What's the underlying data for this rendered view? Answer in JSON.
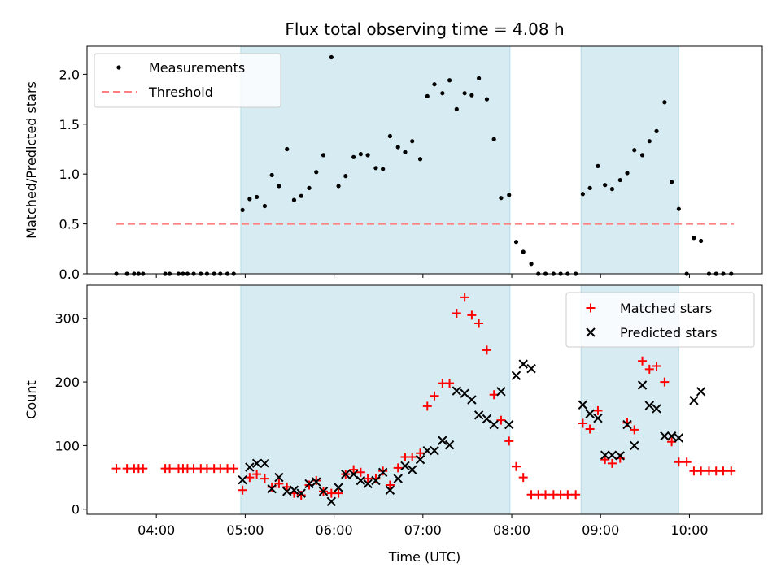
{
  "figure_title": "Flux total observing time = 4.08 h",
  "colors": {
    "band": "#add8e6",
    "band_opacity": 0.5,
    "measurement": "#000000",
    "threshold": "#ff7f7f",
    "matched": "#ff0000",
    "predicted": "#000000"
  },
  "chart_data": [
    {
      "type": "scatter",
      "title": "Flux total observing time = 4.08 h",
      "xlabel": "",
      "ylabel": "Matched/Predicted stars",
      "xlim_hours": [
        3.22,
        10.82
      ],
      "ylim": [
        0,
        2.28
      ],
      "yticks": [
        0.0,
        0.5,
        1.0,
        1.5,
        2.0
      ],
      "ytick_labels": [
        "0.0",
        "0.5",
        "1.0",
        "1.5",
        "2.0"
      ],
      "legend_position": "top-left",
      "legend": [
        "Measurements",
        "Threshold"
      ],
      "threshold": {
        "value": 0.5,
        "x_start_hours": 3.55,
        "x_end_hours": 10.5,
        "label": "Threshold"
      },
      "observing_windows_hours": [
        [
          4.95,
          7.98
        ],
        [
          8.78,
          9.88
        ]
      ],
      "series": [
        {
          "name": "Measurements",
          "marker": "dot",
          "points": [
            [
              3.55,
              0
            ],
            [
              3.67,
              0
            ],
            [
              3.75,
              0
            ],
            [
              3.8,
              0
            ],
            [
              3.85,
              0
            ],
            [
              4.1,
              0
            ],
            [
              4.15,
              0
            ],
            [
              4.25,
              0
            ],
            [
              4.3,
              0
            ],
            [
              4.35,
              0
            ],
            [
              4.42,
              0
            ],
            [
              4.5,
              0
            ],
            [
              4.57,
              0
            ],
            [
              4.65,
              0
            ],
            [
              4.72,
              0
            ],
            [
              4.8,
              0
            ],
            [
              4.87,
              0
            ],
            [
              4.97,
              0.64
            ],
            [
              5.05,
              0.75
            ],
            [
              5.13,
              0.77
            ],
            [
              5.22,
              0.68
            ],
            [
              5.3,
              0.99
            ],
            [
              5.38,
              0.88
            ],
            [
              5.47,
              1.25
            ],
            [
              5.55,
              0.74
            ],
            [
              5.63,
              0.78
            ],
            [
              5.72,
              0.86
            ],
            [
              5.8,
              1.02
            ],
            [
              5.88,
              1.19
            ],
            [
              5.97,
              2.17
            ],
            [
              6.05,
              0.88
            ],
            [
              6.13,
              0.98
            ],
            [
              6.22,
              1.17
            ],
            [
              6.3,
              1.2
            ],
            [
              6.38,
              1.19
            ],
            [
              6.47,
              1.06
            ],
            [
              6.55,
              1.05
            ],
            [
              6.63,
              1.38
            ],
            [
              6.72,
              1.27
            ],
            [
              6.8,
              1.22
            ],
            [
              6.88,
              1.33
            ],
            [
              6.97,
              1.15
            ],
            [
              7.05,
              1.78
            ],
            [
              7.13,
              1.9
            ],
            [
              7.22,
              1.81
            ],
            [
              7.3,
              1.94
            ],
            [
              7.38,
              1.65
            ],
            [
              7.47,
              1.81
            ],
            [
              7.55,
              1.79
            ],
            [
              7.63,
              1.96
            ],
            [
              7.72,
              1.75
            ],
            [
              7.8,
              1.35
            ],
            [
              7.88,
              0.76
            ],
            [
              7.97,
              0.79
            ],
            [
              8.05,
              0.32
            ],
            [
              8.13,
              0.22
            ],
            [
              8.22,
              0.1
            ],
            [
              8.3,
              0
            ],
            [
              8.38,
              0
            ],
            [
              8.47,
              0
            ],
            [
              8.55,
              0
            ],
            [
              8.63,
              0
            ],
            [
              8.72,
              0
            ],
            [
              8.8,
              0.8
            ],
            [
              8.88,
              0.86
            ],
            [
              8.97,
              1.08
            ],
            [
              9.05,
              0.89
            ],
            [
              9.13,
              0.85
            ],
            [
              9.22,
              0.94
            ],
            [
              9.3,
              1.01
            ],
            [
              9.38,
              1.24
            ],
            [
              9.47,
              1.19
            ],
            [
              9.55,
              1.33
            ],
            [
              9.63,
              1.43
            ],
            [
              9.72,
              1.72
            ],
            [
              9.8,
              0.92
            ],
            [
              9.88,
              0.65
            ],
            [
              9.97,
              0
            ],
            [
              10.05,
              0.36
            ],
            [
              10.13,
              0.33
            ],
            [
              10.22,
              0
            ],
            [
              10.3,
              0
            ],
            [
              10.38,
              0
            ],
            [
              10.47,
              0
            ]
          ]
        }
      ]
    },
    {
      "type": "scatter",
      "title": "",
      "xlabel": "Time (UTC)",
      "ylabel": "Count",
      "xlim_hours": [
        3.22,
        10.82
      ],
      "ylim": [
        -8,
        352
      ],
      "yticks": [
        0,
        100,
        200,
        300
      ],
      "ytick_labels": [
        "0",
        "100",
        "200",
        "300"
      ],
      "xticks_hours": [
        4,
        5,
        6,
        7,
        8,
        9,
        10
      ],
      "xtick_labels": [
        "04:00",
        "05:00",
        "06:00",
        "07:00",
        "08:00",
        "09:00",
        "10:00"
      ],
      "legend_position": "top-right",
      "legend": [
        "Matched stars",
        "Predicted stars"
      ],
      "observing_windows_hours": [
        [
          4.95,
          7.98
        ],
        [
          8.78,
          9.88
        ]
      ],
      "series": [
        {
          "name": "Matched stars",
          "marker": "plus",
          "points": [
            [
              3.55,
              64
            ],
            [
              3.67,
              64
            ],
            [
              3.75,
              64
            ],
            [
              3.8,
              64
            ],
            [
              3.85,
              64
            ],
            [
              4.1,
              64
            ],
            [
              4.15,
              64
            ],
            [
              4.25,
              64
            ],
            [
              4.3,
              64
            ],
            [
              4.35,
              64
            ],
            [
              4.42,
              64
            ],
            [
              4.5,
              64
            ],
            [
              4.57,
              64
            ],
            [
              4.65,
              64
            ],
            [
              4.72,
              64
            ],
            [
              4.8,
              64
            ],
            [
              4.87,
              64
            ],
            [
              4.97,
              30
            ],
            [
              5.05,
              50
            ],
            [
              5.13,
              55
            ],
            [
              5.22,
              48
            ],
            [
              5.3,
              35
            ],
            [
              5.38,
              40
            ],
            [
              5.47,
              35
            ],
            [
              5.55,
              25
            ],
            [
              5.63,
              22
            ],
            [
              5.72,
              38
            ],
            [
              5.8,
              45
            ],
            [
              5.88,
              28
            ],
            [
              5.97,
              25
            ],
            [
              6.05,
              25
            ],
            [
              6.13,
              55
            ],
            [
              6.22,
              62
            ],
            [
              6.3,
              58
            ],
            [
              6.38,
              48
            ],
            [
              6.47,
              48
            ],
            [
              6.55,
              60
            ],
            [
              6.63,
              38
            ],
            [
              6.72,
              65
            ],
            [
              6.8,
              82
            ],
            [
              6.88,
              82
            ],
            [
              6.97,
              88
            ],
            [
              7.05,
              162
            ],
            [
              7.13,
              178
            ],
            [
              7.22,
              198
            ],
            [
              7.3,
              198
            ],
            [
              7.38,
              308
            ],
            [
              7.47,
              333
            ],
            [
              7.55,
              305
            ],
            [
              7.63,
              292
            ],
            [
              7.72,
              250
            ],
            [
              7.8,
              180
            ],
            [
              7.88,
              140
            ],
            [
              7.97,
              107
            ],
            [
              8.05,
              67
            ],
            [
              8.13,
              50
            ],
            [
              8.22,
              23
            ],
            [
              8.3,
              23
            ],
            [
              8.38,
              23
            ],
            [
              8.47,
              23
            ],
            [
              8.55,
              23
            ],
            [
              8.63,
              23
            ],
            [
              8.72,
              23
            ],
            [
              8.8,
              135
            ],
            [
              8.88,
              126
            ],
            [
              8.97,
              155
            ],
            [
              9.05,
              78
            ],
            [
              9.13,
              72
            ],
            [
              9.22,
              80
            ],
            [
              9.3,
              136
            ],
            [
              9.38,
              125
            ],
            [
              9.47,
              233
            ],
            [
              9.55,
              220
            ],
            [
              9.63,
              225
            ],
            [
              9.72,
              200
            ],
            [
              9.8,
              106
            ],
            [
              9.88,
              74
            ],
            [
              9.97,
              74
            ],
            [
              10.05,
              60
            ],
            [
              10.13,
              60
            ],
            [
              10.22,
              60
            ],
            [
              10.3,
              60
            ],
            [
              10.38,
              60
            ],
            [
              10.47,
              60
            ]
          ]
        },
        {
          "name": "Predicted stars",
          "marker": "x",
          "points": [
            [
              4.97,
              46
            ],
            [
              5.05,
              66
            ],
            [
              5.13,
              72
            ],
            [
              5.22,
              72
            ],
            [
              5.3,
              32
            ],
            [
              5.38,
              50
            ],
            [
              5.47,
              28
            ],
            [
              5.55,
              30
            ],
            [
              5.63,
              25
            ],
            [
              5.72,
              40
            ],
            [
              5.8,
              43
            ],
            [
              5.88,
              28
            ],
            [
              5.97,
              12
            ],
            [
              6.05,
              34
            ],
            [
              6.13,
              55
            ],
            [
              6.22,
              55
            ],
            [
              6.3,
              45
            ],
            [
              6.38,
              40
            ],
            [
              6.47,
              45
            ],
            [
              6.55,
              58
            ],
            [
              6.63,
              30
            ],
            [
              6.72,
              48
            ],
            [
              6.8,
              68
            ],
            [
              6.88,
              62
            ],
            [
              6.97,
              78
            ],
            [
              7.05,
              92
            ],
            [
              7.13,
              92
            ],
            [
              7.22,
              108
            ],
            [
              7.3,
              101
            ],
            [
              7.38,
              186
            ],
            [
              7.47,
              182
            ],
            [
              7.55,
              172
            ],
            [
              7.63,
              148
            ],
            [
              7.72,
              142
            ],
            [
              7.8,
              133
            ],
            [
              7.88,
              185
            ],
            [
              7.97,
              133
            ],
            [
              8.05,
              210
            ],
            [
              8.13,
              228
            ],
            [
              8.22,
              221
            ],
            [
              8.8,
              164
            ],
            [
              8.88,
              150
            ],
            [
              8.97,
              143
            ],
            [
              9.05,
              85
            ],
            [
              9.13,
              85
            ],
            [
              9.22,
              84
            ],
            [
              9.3,
              133
            ],
            [
              9.38,
              100
            ],
            [
              9.47,
              195
            ],
            [
              9.55,
              163
            ],
            [
              9.63,
              158
            ],
            [
              9.72,
              115
            ],
            [
              9.8,
              115
            ],
            [
              9.88,
              112
            ],
            [
              10.05,
              171
            ],
            [
              10.13,
              185
            ]
          ]
        }
      ]
    }
  ]
}
